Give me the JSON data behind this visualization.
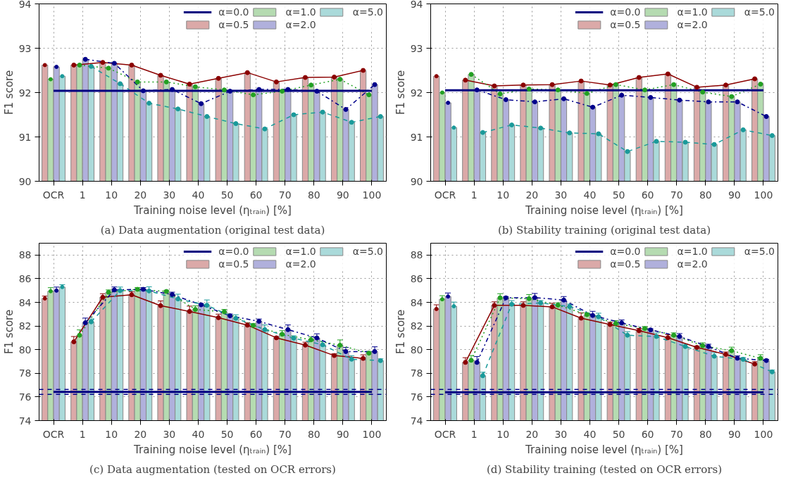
{
  "chart_data": [
    {
      "type": "bar",
      "title": "(a) Data augmentation (original test data)",
      "xlabel": "Training noise level (ηₜᵣₐᵢₙ) [%]",
      "ylabel": "F1 score",
      "categories": [
        "OCR",
        "1",
        "10",
        "20",
        "30",
        "40",
        "50",
        "60",
        "70",
        "80",
        "90",
        "100"
      ],
      "ylim": [
        90,
        94
      ],
      "yticks": [
        90,
        91,
        92,
        93,
        94
      ],
      "grid": true,
      "legend": "top right",
      "series": [
        {
          "name": "α=0.5",
          "color": "#dba9a8",
          "values": [
            92.62,
            92.62,
            92.68,
            92.62,
            92.39,
            92.19,
            92.32,
            92.45,
            92.24,
            92.34,
            92.35,
            92.5
          ]
        },
        {
          "name": "α=1.0",
          "color": "#b5dbb1",
          "values": [
            92.3,
            92.62,
            92.55,
            92.24,
            92.24,
            92.13,
            92.06,
            91.95,
            92.03,
            92.17,
            92.3,
            91.95
          ]
        },
        {
          "name": "α=2.0",
          "color": "#b0b0dc",
          "values": [
            92.58,
            92.75,
            92.66,
            92.04,
            92.07,
            91.75,
            92.03,
            92.07,
            92.07,
            92.03,
            91.62,
            92.18
          ]
        },
        {
          "name": "α=5.0",
          "color": "#aadada",
          "values": [
            92.37,
            92.59,
            92.2,
            91.76,
            91.63,
            91.46,
            91.3,
            91.18,
            91.5,
            91.56,
            91.33,
            91.46
          ]
        },
        {
          "type": "line",
          "color": "#8b0000",
          "line_style": "solid",
          "marker": "circle",
          "values": [
            null,
            92.62,
            92.68,
            92.62,
            92.39,
            92.19,
            92.32,
            92.45,
            92.24,
            92.34,
            92.35,
            92.5
          ]
        },
        {
          "type": "line",
          "color": "#22a022",
          "line_style": "dotted",
          "marker": "circle",
          "values": [
            null,
            92.62,
            92.55,
            92.24,
            92.24,
            92.13,
            92.06,
            91.95,
            92.03,
            92.17,
            92.3,
            91.95
          ]
        },
        {
          "type": "line",
          "color": "#00008b",
          "line_style": "dashdot",
          "marker": "circle",
          "values": [
            null,
            92.75,
            92.66,
            92.04,
            92.07,
            91.75,
            92.03,
            92.07,
            92.07,
            92.03,
            91.62,
            92.18
          ]
        },
        {
          "type": "line",
          "color": "#1a9a9a",
          "line_style": "dashed",
          "marker": "circle",
          "values": [
            null,
            92.59,
            92.2,
            91.76,
            91.63,
            91.46,
            91.3,
            91.18,
            91.5,
            91.56,
            91.33,
            91.46
          ]
        },
        {
          "type": "scatter",
          "color": "#8b0000",
          "marker": "circle",
          "values": [
            92.62,
            null,
            null,
            null,
            null,
            null,
            null,
            null,
            null,
            null,
            null,
            null
          ]
        },
        {
          "type": "scatter",
          "color": "#22a022",
          "marker": "circle",
          "values": [
            92.3,
            null,
            null,
            null,
            null,
            null,
            null,
            null,
            null,
            null,
            null,
            null
          ]
        },
        {
          "type": "scatter",
          "color": "#00008b",
          "marker": "circle",
          "values": [
            92.58,
            null,
            null,
            null,
            null,
            null,
            null,
            null,
            null,
            null,
            null,
            null
          ]
        },
        {
          "type": "scatter",
          "color": "#1a9a9a",
          "marker": "circle",
          "values": [
            92.37,
            null,
            null,
            null,
            null,
            null,
            null,
            null,
            null,
            null,
            null,
            null
          ]
        },
        {
          "type": "line",
          "name": "α=0.0",
          "color": "#000080",
          "line_style": "solid",
          "values": [
            92.04,
            92.04,
            92.04,
            92.04,
            92.04,
            92.04,
            92.04,
            92.04,
            92.04,
            92.04,
            92.04,
            92.04
          ]
        }
      ]
    },
    {
      "type": "bar",
      "title": "(b) Stability training (original test data)",
      "xlabel": "Training noise level (ηₜᵣₐᵢₙ) [%]",
      "ylabel": "F1 score",
      "categories": [
        "OCR",
        "1",
        "10",
        "20",
        "30",
        "40",
        "50",
        "60",
        "70",
        "80",
        "90",
        "100"
      ],
      "ylim": [
        90,
        94
      ],
      "yticks": [
        90,
        91,
        92,
        93,
        94
      ],
      "grid": true,
      "legend": "top right",
      "series": [
        {
          "name": "α=0.5",
          "color": "#dba9a8",
          "values": [
            92.37,
            92.28,
            92.15,
            92.17,
            92.18,
            92.26,
            92.17,
            92.34,
            92.42,
            92.12,
            92.17,
            92.31
          ]
        },
        {
          "name": "α=1.0",
          "color": "#b5dbb1",
          "values": [
            92.0,
            92.41,
            91.97,
            92.08,
            92.06,
            91.98,
            92.18,
            92.06,
            92.18,
            92.01,
            91.91,
            92.19
          ]
        },
        {
          "name": "α=2.0",
          "color": "#b0b0dc",
          "values": [
            91.77,
            92.06,
            91.84,
            91.79,
            91.86,
            91.67,
            91.94,
            91.89,
            91.83,
            91.79,
            91.79,
            91.46
          ]
        },
        {
          "name": "α=5.0",
          "color": "#aadada",
          "values": [
            91.21,
            91.1,
            91.27,
            91.2,
            91.09,
            91.07,
            90.67,
            90.9,
            90.88,
            90.83,
            91.16,
            91.03
          ]
        },
        {
          "type": "line",
          "color": "#8b0000",
          "line_style": "solid",
          "marker": "circle",
          "values": [
            null,
            92.28,
            92.15,
            92.17,
            92.18,
            92.26,
            92.17,
            92.34,
            92.42,
            92.12,
            92.17,
            92.31
          ]
        },
        {
          "type": "line",
          "color": "#22a022",
          "line_style": "dotted",
          "marker": "circle",
          "values": [
            null,
            92.41,
            91.97,
            92.08,
            92.06,
            91.98,
            92.18,
            92.06,
            92.18,
            92.01,
            91.91,
            92.19
          ]
        },
        {
          "type": "line",
          "color": "#00008b",
          "line_style": "dashdot",
          "marker": "circle",
          "values": [
            null,
            92.06,
            91.84,
            91.79,
            91.86,
            91.67,
            91.94,
            91.89,
            91.83,
            91.79,
            91.79,
            91.46
          ]
        },
        {
          "type": "line",
          "color": "#1a9a9a",
          "line_style": "dashed",
          "marker": "circle",
          "values": [
            null,
            91.1,
            91.27,
            91.2,
            91.09,
            91.07,
            90.67,
            90.9,
            90.88,
            90.83,
            91.16,
            91.03
          ]
        },
        {
          "type": "scatter",
          "color": "#8b0000",
          "marker": "circle",
          "values": [
            92.37,
            null,
            null,
            null,
            null,
            null,
            null,
            null,
            null,
            null,
            null,
            null
          ]
        },
        {
          "type": "scatter",
          "color": "#22a022",
          "marker": "circle",
          "values": [
            92.0,
            null,
            null,
            null,
            null,
            null,
            null,
            null,
            null,
            null,
            null,
            null
          ]
        },
        {
          "type": "scatter",
          "color": "#00008b",
          "marker": "circle",
          "values": [
            91.77,
            null,
            null,
            null,
            null,
            null,
            null,
            null,
            null,
            null,
            null,
            null
          ]
        },
        {
          "type": "scatter",
          "color": "#1a9a9a",
          "marker": "circle",
          "values": [
            91.21,
            null,
            null,
            null,
            null,
            null,
            null,
            null,
            null,
            null,
            null,
            null
          ]
        },
        {
          "type": "line",
          "name": "α=0.0",
          "color": "#000080",
          "line_style": "solid",
          "values": [
            92.05,
            92.05,
            92.05,
            92.05,
            92.05,
            92.05,
            92.05,
            92.05,
            92.05,
            92.05,
            92.05,
            92.05
          ]
        }
      ]
    },
    {
      "type": "bar",
      "title": "(c) Data augmentation (tested on OCR errors)",
      "xlabel": "Training noise level (ηₜᵣₐᵢₙ) [%]",
      "ylabel": "F1 score",
      "categories": [
        "OCR",
        "1",
        "10",
        "20",
        "30",
        "40",
        "50",
        "60",
        "70",
        "80",
        "90",
        "100"
      ],
      "ylim": [
        74,
        89
      ],
      "yticks": [
        74,
        76,
        78,
        80,
        82,
        84,
        86,
        88
      ],
      "grid": true,
      "legend": "top right",
      "series": [
        {
          "name": "α=0.5",
          "color": "#dba9a8",
          "values": [
            84.33,
            80.66,
            84.43,
            84.64,
            83.72,
            83.23,
            82.7,
            82.07,
            81.0,
            80.38,
            79.5,
            79.26
          ],
          "errors": [
            null,
            0.45,
            0.3,
            0.25,
            0.4,
            0.45,
            0.3,
            0.2,
            0.1,
            0.25,
            0.15,
            0.3
          ]
        },
        {
          "name": "α=1.0",
          "color": "#b5dbb1",
          "values": [
            84.94,
            81.22,
            84.85,
            85.1,
            84.92,
            83.4,
            83.2,
            82.05,
            81.3,
            80.83,
            80.37,
            79.7
          ],
          "errors": [
            null,
            0.45,
            0.2,
            0.15,
            0.1,
            0.3,
            0.2,
            0.15,
            0.3,
            0.25,
            0.45,
            0.15
          ]
        },
        {
          "name": "α=2.0",
          "color": "#b0b0dc",
          "values": [
            84.99,
            82.27,
            85.05,
            85.1,
            84.66,
            83.79,
            82.86,
            82.39,
            81.69,
            80.99,
            79.84,
            79.84
          ],
          "errors": [
            null,
            0.4,
            0.25,
            0.15,
            0.2,
            0.1,
            0.15,
            0.2,
            0.4,
            0.35,
            0.35,
            0.4
          ]
        },
        {
          "name": "α=5.0",
          "color": "#aadada",
          "values": [
            85.29,
            82.35,
            84.99,
            84.96,
            84.29,
            83.75,
            82.65,
            81.69,
            80.97,
            80.41,
            79.19,
            79.07
          ],
          "errors": [
            null,
            0.25,
            0.3,
            0.35,
            0.4,
            0.45,
            0.3,
            0.4,
            0.2,
            0.3,
            0.3,
            0.15
          ]
        },
        {
          "type": "line",
          "color": "#8b0000",
          "line_style": "solid",
          "marker": "circle",
          "values": [
            null,
            80.66,
            84.43,
            84.64,
            83.72,
            83.23,
            82.7,
            82.07,
            81.0,
            80.38,
            79.5,
            79.26
          ]
        },
        {
          "type": "line",
          "color": "#22a022",
          "line_style": "dotted",
          "marker": "circle",
          "values": [
            null,
            81.22,
            84.85,
            85.1,
            84.92,
            83.4,
            83.2,
            82.05,
            81.3,
            80.83,
            80.37,
            79.7
          ]
        },
        {
          "type": "line",
          "color": "#00008b",
          "line_style": "dashdot",
          "marker": "circle",
          "values": [
            null,
            82.27,
            85.05,
            85.1,
            84.66,
            83.79,
            82.86,
            82.39,
            81.69,
            80.99,
            79.84,
            79.84
          ]
        },
        {
          "type": "line",
          "color": "#1a9a9a",
          "line_style": "dashed",
          "marker": "circle",
          "values": [
            null,
            82.35,
            84.99,
            84.96,
            84.29,
            83.75,
            82.65,
            81.69,
            80.97,
            80.41,
            79.19,
            79.07
          ]
        },
        {
          "type": "scatter",
          "color": "#8b0000",
          "marker": "circle",
          "values": [
            84.33,
            null,
            null,
            null,
            null,
            null,
            null,
            null,
            null,
            null,
            null,
            null
          ],
          "errors": [
            0.2,
            null,
            null,
            null,
            null,
            null,
            null,
            null,
            null,
            null,
            null,
            null
          ]
        },
        {
          "type": "scatter",
          "color": "#22a022",
          "marker": "circle",
          "values": [
            84.94,
            null,
            null,
            null,
            null,
            null,
            null,
            null,
            null,
            null,
            null,
            null
          ],
          "errors": [
            0.3,
            null,
            null,
            null,
            null,
            null,
            null,
            null,
            null,
            null,
            null,
            null
          ]
        },
        {
          "type": "scatter",
          "color": "#00008b",
          "marker": "circle",
          "values": [
            84.99,
            null,
            null,
            null,
            null,
            null,
            null,
            null,
            null,
            null,
            null,
            null
          ],
          "errors": [
            0.3,
            null,
            null,
            null,
            null,
            null,
            null,
            null,
            null,
            null,
            null,
            null
          ]
        },
        {
          "type": "scatter",
          "color": "#1a9a9a",
          "marker": "circle",
          "values": [
            85.29,
            null,
            null,
            null,
            null,
            null,
            null,
            null,
            null,
            null,
            null,
            null
          ],
          "errors": [
            0.2,
            null,
            null,
            null,
            null,
            null,
            null,
            null,
            null,
            null,
            null,
            null
          ]
        },
        {
          "type": "line",
          "name": "α=0.0",
          "color": "#000080",
          "line_style": "solid",
          "values": [
            76.43,
            76.43,
            76.43,
            76.43,
            76.43,
            76.43,
            76.43,
            76.43,
            76.43,
            76.43,
            76.43,
            76.43
          ]
        }
      ],
      "ref_lines": [
        {
          "axis": "y",
          "value": 76.64,
          "color": "#00008b",
          "line_style": "dashed"
        },
        {
          "axis": "y",
          "value": 76.22,
          "color": "#00008b",
          "line_style": "dashed"
        }
      ]
    },
    {
      "type": "bar",
      "title": "(d) Stability training (tested on OCR errors)",
      "xlabel": "Training noise level (ηₜᵣₐᵢₙ) [%]",
      "ylabel": "F1 score",
      "categories": [
        "OCR",
        "1",
        "10",
        "20",
        "30",
        "40",
        "50",
        "60",
        "70",
        "80",
        "90",
        "100"
      ],
      "ylim": [
        74,
        89
      ],
      "yticks": [
        74,
        76,
        78,
        80,
        82,
        84,
        86,
        88
      ],
      "grid": true,
      "legend": "top right",
      "series": [
        {
          "name": "α=0.5",
          "color": "#dba9a8",
          "values": [
            83.44,
            78.92,
            83.74,
            83.74,
            83.62,
            82.66,
            82.12,
            81.6,
            81.01,
            80.19,
            79.6,
            78.78
          ],
          "errors": [
            null,
            0.4,
            0.3,
            0.3,
            0.3,
            0.45,
            0.2,
            0.2,
            0.25,
            0.1,
            0.2,
            0.2
          ]
        },
        {
          "name": "α=1.0",
          "color": "#b5dbb1",
          "values": [
            84.26,
            79.1,
            84.38,
            84.31,
            83.76,
            82.96,
            82.21,
            81.79,
            81.22,
            80.33,
            79.91,
            79.27
          ],
          "errors": [
            null,
            0.4,
            0.35,
            0.35,
            0.2,
            0.15,
            0.25,
            0.15,
            0.2,
            0.25,
            0.3,
            0.3
          ]
        },
        {
          "name": "α=2.0",
          "color": "#b0b0dc",
          "values": [
            84.49,
            78.92,
            84.38,
            84.4,
            84.19,
            82.89,
            82.26,
            81.67,
            81.11,
            80.26,
            79.27,
            79.08
          ],
          "errors": [
            null,
            0.5,
            0.1,
            0.35,
            0.3,
            0.35,
            0.25,
            0.1,
            0.25,
            0.2,
            0.2,
            0.1
          ]
        },
        {
          "name": "α=5.0",
          "color": "#aadada",
          "values": [
            83.67,
            77.79,
            83.84,
            83.95,
            83.65,
            82.78,
            81.22,
            81.11,
            80.26,
            79.44,
            79.18,
            78.12
          ],
          "errors": [
            null,
            0.3,
            0.3,
            0.2,
            0.2,
            0.3,
            0.3,
            0.3,
            0.2,
            0.3,
            0.15,
            0.15
          ]
        },
        {
          "type": "line",
          "color": "#8b0000",
          "line_style": "solid",
          "marker": "circle",
          "values": [
            null,
            78.92,
            83.74,
            83.74,
            83.62,
            82.66,
            82.12,
            81.6,
            81.01,
            80.19,
            79.6,
            78.78
          ]
        },
        {
          "type": "line",
          "color": "#22a022",
          "line_style": "dotted",
          "marker": "circle",
          "values": [
            null,
            79.1,
            84.38,
            84.31,
            83.76,
            82.96,
            82.21,
            81.79,
            81.22,
            80.33,
            79.91,
            79.27
          ]
        },
        {
          "type": "line",
          "color": "#00008b",
          "line_style": "dashdot",
          "marker": "circle",
          "values": [
            null,
            78.92,
            84.38,
            84.4,
            84.19,
            82.89,
            82.26,
            81.67,
            81.11,
            80.26,
            79.27,
            79.08
          ]
        },
        {
          "type": "line",
          "color": "#1a9a9a",
          "line_style": "dashed",
          "marker": "circle",
          "values": [
            null,
            77.79,
            83.84,
            83.95,
            83.65,
            82.78,
            81.22,
            81.11,
            80.26,
            79.44,
            79.18,
            78.12
          ]
        },
        {
          "type": "scatter",
          "color": "#8b0000",
          "marker": "circle",
          "values": [
            83.44,
            null,
            null,
            null,
            null,
            null,
            null,
            null,
            null,
            null,
            null,
            null
          ],
          "errors": [
            0.35,
            null,
            null,
            null,
            null,
            null,
            null,
            null,
            null,
            null,
            null,
            null
          ]
        },
        {
          "type": "scatter",
          "color": "#22a022",
          "marker": "circle",
          "values": [
            84.26,
            null,
            null,
            null,
            null,
            null,
            null,
            null,
            null,
            null,
            null,
            null
          ],
          "errors": [
            0.3,
            null,
            null,
            null,
            null,
            null,
            null,
            null,
            null,
            null,
            null,
            null
          ]
        },
        {
          "type": "scatter",
          "color": "#00008b",
          "marker": "circle",
          "values": [
            84.49,
            null,
            null,
            null,
            null,
            null,
            null,
            null,
            null,
            null,
            null,
            null
          ],
          "errors": [
            0.3,
            null,
            null,
            null,
            null,
            null,
            null,
            null,
            null,
            null,
            null,
            null
          ]
        },
        {
          "type": "scatter",
          "color": "#1a9a9a",
          "marker": "circle",
          "values": [
            83.67,
            null,
            null,
            null,
            null,
            null,
            null,
            null,
            null,
            null,
            null,
            null
          ],
          "errors": [
            0.35,
            null,
            null,
            null,
            null,
            null,
            null,
            null,
            null,
            null,
            null,
            null
          ]
        },
        {
          "type": "line",
          "name": "α=0.0",
          "color": "#000080",
          "line_style": "solid",
          "values": [
            76.4,
            76.4,
            76.4,
            76.4,
            76.4,
            76.4,
            76.4,
            76.4,
            76.4,
            76.4,
            76.4,
            76.4
          ]
        }
      ],
      "ref_lines": [
        {
          "axis": "y",
          "value": 76.64,
          "color": "#00008b",
          "line_style": "dashed"
        },
        {
          "axis": "y",
          "value": 76.21,
          "color": "#00008b",
          "line_style": "dashed"
        }
      ]
    }
  ]
}
